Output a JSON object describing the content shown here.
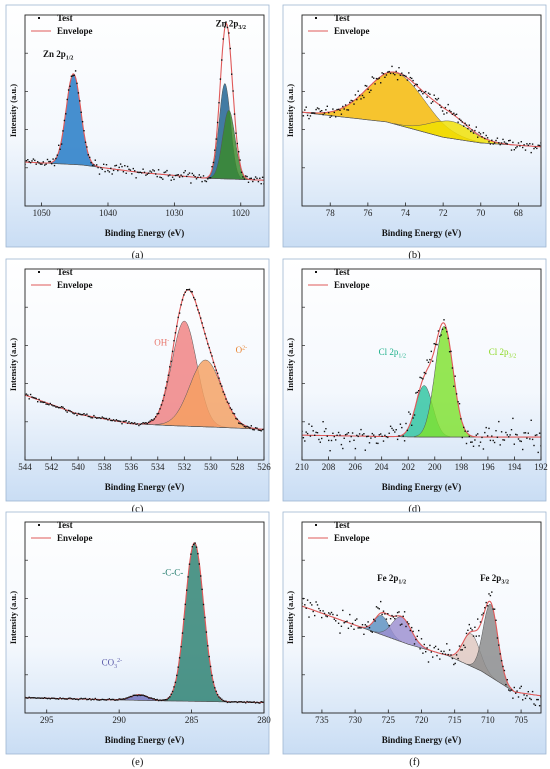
{
  "panels": [
    {
      "label": "(a)",
      "xlabel": "Binding Energy (eV)",
      "ylabel": "Intensity (a.u.)",
      "legend": {
        "test": "Test",
        "envelope": "Envelope"
      },
      "xlim": [
        1052.5,
        1016.5
      ],
      "xticks": [
        "1050",
        "1040",
        "1030",
        "1020"
      ],
      "xtick_values": [
        1050,
        1040,
        1030,
        1020
      ],
      "annotations": [
        {
          "id": "zn-2p12",
          "main": "Zn 2p",
          "sub": "1/2",
          "sup": "",
          "at": [
            1047.5,
            0.78
          ],
          "color": "#111111"
        },
        {
          "id": "zn-2p32",
          "main": "Zn 2p",
          "sub": "3/2",
          "sup": "",
          "at": [
            1021.5,
            0.94
          ],
          "color": "#111111"
        }
      ]
    },
    {
      "label": "(b)",
      "xlabel": "Binding Energy (eV)",
      "ylabel": "Intensity (a.u.)",
      "legend": {
        "test": "Test",
        "envelope": "Envelope"
      },
      "xlim": [
        79.5,
        66.8
      ],
      "xticks": [
        "78",
        "76",
        "74",
        "72",
        "70",
        "68"
      ],
      "xtick_values": [
        78,
        76,
        74,
        72,
        70,
        68
      ],
      "annotations": []
    },
    {
      "label": "(c)",
      "xlabel": "Binding Energy (eV)",
      "ylabel": "Intensity (a.u.)",
      "legend": {
        "test": "Test",
        "envelope": "Envelope"
      },
      "xlim": [
        544,
        526
      ],
      "xticks": [
        "544",
        "542",
        "540",
        "538",
        "536",
        "534",
        "532",
        "530",
        "528",
        "526"
      ],
      "xtick_values": [
        544,
        542,
        540,
        538,
        536,
        534,
        532,
        530,
        528,
        526
      ],
      "annotations": [
        {
          "id": "oh",
          "main": "OH",
          "sub": "",
          "sup": "-",
          "at": [
            533.7,
            0.6
          ],
          "color": "#e8746a"
        },
        {
          "id": "o2",
          "main": "O",
          "sub": "",
          "sup": "2-",
          "at": [
            527.7,
            0.56
          ],
          "color": "#e8822e"
        }
      ]
    },
    {
      "label": "(d)",
      "xlabel": "Binding Energy (eV)",
      "ylabel": "Intensity (a.u.)",
      "legend": {
        "test": "Test",
        "envelope": "Envelope"
      },
      "xlim": [
        210,
        192
      ],
      "xticks": [
        "210",
        "208",
        "206",
        "204",
        "202",
        "200",
        "198",
        "196",
        "194",
        "192"
      ],
      "xtick_values": [
        210,
        208,
        206,
        204,
        202,
        200,
        198,
        196,
        194,
        192
      ],
      "annotations": [
        {
          "id": "cl-2p12",
          "main": "Cl 2p",
          "sub": "1/2",
          "sup": "",
          "at": [
            203.2,
            0.55
          ],
          "color": "#1cb08a"
        },
        {
          "id": "cl-2p32",
          "main": "Cl 2p",
          "sub": "3/2",
          "sup": "",
          "at": [
            194.9,
            0.55
          ],
          "color": "#8ad81f"
        }
      ]
    },
    {
      "label": "(e)",
      "xlabel": "Binding Energy (eV)",
      "ylabel": "Intensity (a.u.)",
      "legend": {
        "test": "Test",
        "envelope": "Envelope"
      },
      "xlim": [
        296.5,
        280
      ],
      "xticks": [
        "295",
        "290",
        "285",
        "280"
      ],
      "xtick_values": [
        295,
        290,
        285,
        280
      ],
      "annotations": [
        {
          "id": "c-c",
          "main": "-C-C-",
          "sub": "",
          "sup": "",
          "at": [
            286.3,
            0.72
          ],
          "color": "#1f7a6a"
        },
        {
          "id": "co3",
          "main": "CO",
          "sub": "3",
          "sup": "2-",
          "at": [
            290.5,
            0.25
          ],
          "color": "#5a5aa8"
        }
      ]
    },
    {
      "label": "(f)",
      "xlabel": "Binding Energy (eV)",
      "ylabel": "Intensity (a.u.)",
      "legend": {
        "test": "Test",
        "envelope": "Envelope"
      },
      "xlim": [
        738,
        702
      ],
      "xticks": [
        "735",
        "730",
        "725",
        "720",
        "715",
        "710",
        "705"
      ],
      "xtick_values": [
        735,
        730,
        725,
        720,
        715,
        710,
        705
      ],
      "annotations": [
        {
          "id": "fe-2p12",
          "main": "Fe 2p",
          "sub": "1/2",
          "sup": "",
          "at": [
            724.5,
            0.69
          ],
          "color": "#111111"
        },
        {
          "id": "fe-2p32",
          "main": "Fe 2p",
          "sub": "3/2",
          "sup": "",
          "at": [
            709.0,
            0.69
          ],
          "color": "#111111"
        }
      ]
    }
  ],
  "chart_data": [
    {
      "type": "line",
      "title": "",
      "xlabel": "Binding Energy (eV)",
      "ylabel": "Intensity (a.u.)",
      "xlim": [
        1052.5,
        1016.5
      ],
      "ylim": [
        0,
        1
      ],
      "background_poly": [
        [
          1052.5,
          0.23
        ],
        [
          1044,
          0.215
        ],
        [
          1035,
          0.175
        ],
        [
          1025,
          0.145
        ],
        [
          1016.5,
          0.135
        ]
      ],
      "peaks": [
        {
          "name": "Zn 2p1/2",
          "center": 1045.2,
          "height": 0.475,
          "fwhm": 2.6,
          "color": "#1f77c4"
        },
        {
          "name": "Zn 2p3/2",
          "center": 1022.4,
          "height": 0.5,
          "fwhm": 2.0,
          "color": "#1a5f8f"
        },
        {
          "name": "",
          "center": 1021.8,
          "height": 0.36,
          "fwhm": 2.2,
          "color": "#3a8a2a"
        }
      ],
      "noise": 0.025,
      "envelope_color": "#e05a5a",
      "series": [
        {
          "name": "Test"
        },
        {
          "name": "Envelope"
        }
      ],
      "legend": "top-left"
    },
    {
      "type": "line",
      "title": "",
      "xlabel": "Binding Energy (eV)",
      "ylabel": "Intensity (a.u.)",
      "xlim": [
        79.5,
        66.8
      ],
      "ylim": [
        0,
        1
      ],
      "background_poly": [
        [
          79.5,
          0.49
        ],
        [
          75,
          0.44
        ],
        [
          72,
          0.36
        ],
        [
          70,
          0.33
        ],
        [
          66.8,
          0.31
        ]
      ],
      "peaks": [
        {
          "name": "",
          "center": 74.5,
          "height": 0.27,
          "fwhm": 3.6,
          "color": "#f5b800"
        },
        {
          "name": "",
          "center": 71.6,
          "height": 0.09,
          "fwhm": 2.6,
          "color": "#f0e000"
        }
      ],
      "noise": 0.03,
      "envelope_color": "#e05a5a",
      "series": [
        {
          "name": "Test"
        },
        {
          "name": "Envelope"
        }
      ],
      "legend": "top-left"
    },
    {
      "type": "line",
      "title": "",
      "xlabel": "Binding Energy (eV)",
      "ylabel": "Intensity (a.u.)",
      "xlim": [
        544,
        526
      ],
      "ylim": [
        0,
        1
      ],
      "background_poly": [
        [
          544,
          0.34
        ],
        [
          540,
          0.24
        ],
        [
          536,
          0.19
        ],
        [
          533,
          0.18
        ],
        [
          529,
          0.17
        ],
        [
          526,
          0.16
        ]
      ],
      "peaks": [
        {
          "name": "OH-",
          "center": 532.0,
          "height": 0.55,
          "fwhm": 2.2,
          "color": "#f08080"
        },
        {
          "name": "O2-",
          "center": 530.4,
          "height": 0.35,
          "fwhm": 2.8,
          "color": "#f5a060"
        }
      ],
      "noise": 0.01,
      "envelope_color": "#e05a5a",
      "series": [
        {
          "name": "Test"
        },
        {
          "name": "Envelope"
        }
      ],
      "legend": "top-left"
    },
    {
      "type": "line",
      "title": "",
      "xlabel": "Binding Energy (eV)",
      "ylabel": "Intensity (a.u.)",
      "xlim": [
        210,
        192
      ],
      "ylim": [
        0,
        1
      ],
      "background_poly": [
        [
          210,
          0.13
        ],
        [
          201,
          0.12
        ],
        [
          196,
          0.12
        ],
        [
          192,
          0.12
        ]
      ],
      "peaks": [
        {
          "name": "Cl 2p1/2",
          "center": 200.8,
          "height": 0.27,
          "fwhm": 1.5,
          "color": "#2ec4a0"
        },
        {
          "name": "Cl 2p3/2",
          "center": 199.3,
          "height": 0.58,
          "fwhm": 1.6,
          "color": "#7fe22e"
        }
      ],
      "noise": 0.07,
      "envelope_color": "#e05a5a",
      "series": [
        {
          "name": "Test"
        },
        {
          "name": "Envelope"
        }
      ],
      "legend": "top-left"
    },
    {
      "type": "line",
      "title": "",
      "xlabel": "Binding Energy (eV)",
      "ylabel": "Intensity (a.u.)",
      "xlim": [
        296.5,
        280
      ],
      "ylim": [
        0,
        1
      ],
      "background_poly": [
        [
          296.5,
          0.08
        ],
        [
          288,
          0.065
        ],
        [
          280,
          0.055
        ]
      ],
      "peaks": [
        {
          "name": "-C-C-",
          "center": 284.8,
          "height": 0.83,
          "fwhm": 1.5,
          "color": "#2a7f6f"
        },
        {
          "name": "CO3 2-",
          "center": 288.6,
          "height": 0.03,
          "fwhm": 1.4,
          "color": "#7070c0"
        }
      ],
      "noise": 0.004,
      "envelope_color": "#e05a5a",
      "series": [
        {
          "name": "Test"
        },
        {
          "name": "Envelope"
        }
      ],
      "legend": "top-left"
    },
    {
      "type": "line",
      "title": "",
      "xlabel": "Binding Energy (eV)",
      "ylabel": "Intensity (a.u.)",
      "xlim": [
        738,
        702
      ],
      "ylim": [
        0,
        1
      ],
      "background_poly": [
        [
          738,
          0.56
        ],
        [
          730,
          0.46
        ],
        [
          722,
          0.36
        ],
        [
          716,
          0.3
        ],
        [
          711,
          0.22
        ],
        [
          706,
          0.11
        ],
        [
          702,
          0.09
        ]
      ],
      "peaks": [
        {
          "name": "Fe 2p1/2",
          "center": 726.0,
          "height": 0.1,
          "fwhm": 2.6,
          "color": "#5a8fbf"
        },
        {
          "name": "",
          "center": 723.0,
          "height": 0.13,
          "fwhm": 3.4,
          "color": "#9c8fcf"
        },
        {
          "name": "",
          "center": 712.5,
          "height": 0.17,
          "fwhm": 3.0,
          "color": "#e0c8c0"
        },
        {
          "name": "Fe 2p3/2",
          "center": 709.6,
          "height": 0.38,
          "fwhm": 2.6,
          "color": "#8a8a8a"
        }
      ],
      "noise": 0.06,
      "envelope_color": "#e05a5a",
      "series": [
        {
          "name": "Test"
        },
        {
          "name": "Envelope"
        }
      ],
      "legend": "top-left"
    }
  ]
}
